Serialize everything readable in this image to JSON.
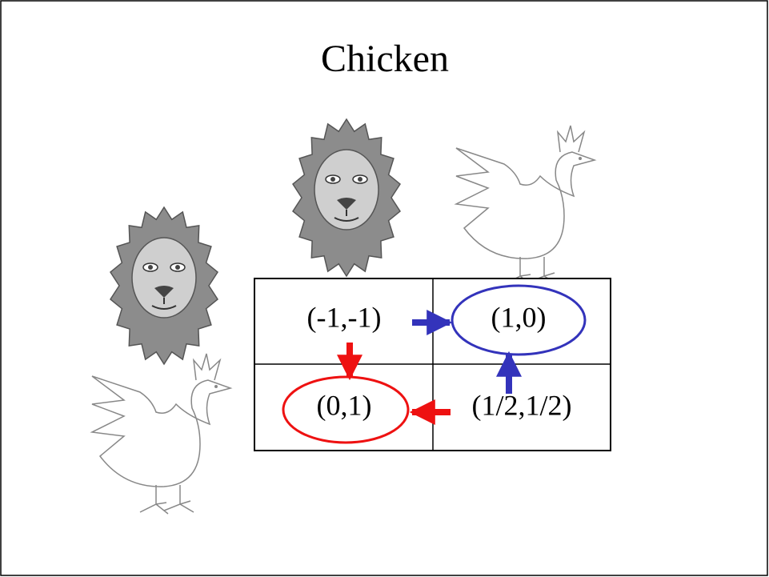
{
  "title": "Chicken",
  "table": {
    "rows": [
      [
        "(-1,-1)",
        "(1,0)"
      ],
      [
        "(0,1)",
        "(1/2,1/2)"
      ]
    ]
  }
}
